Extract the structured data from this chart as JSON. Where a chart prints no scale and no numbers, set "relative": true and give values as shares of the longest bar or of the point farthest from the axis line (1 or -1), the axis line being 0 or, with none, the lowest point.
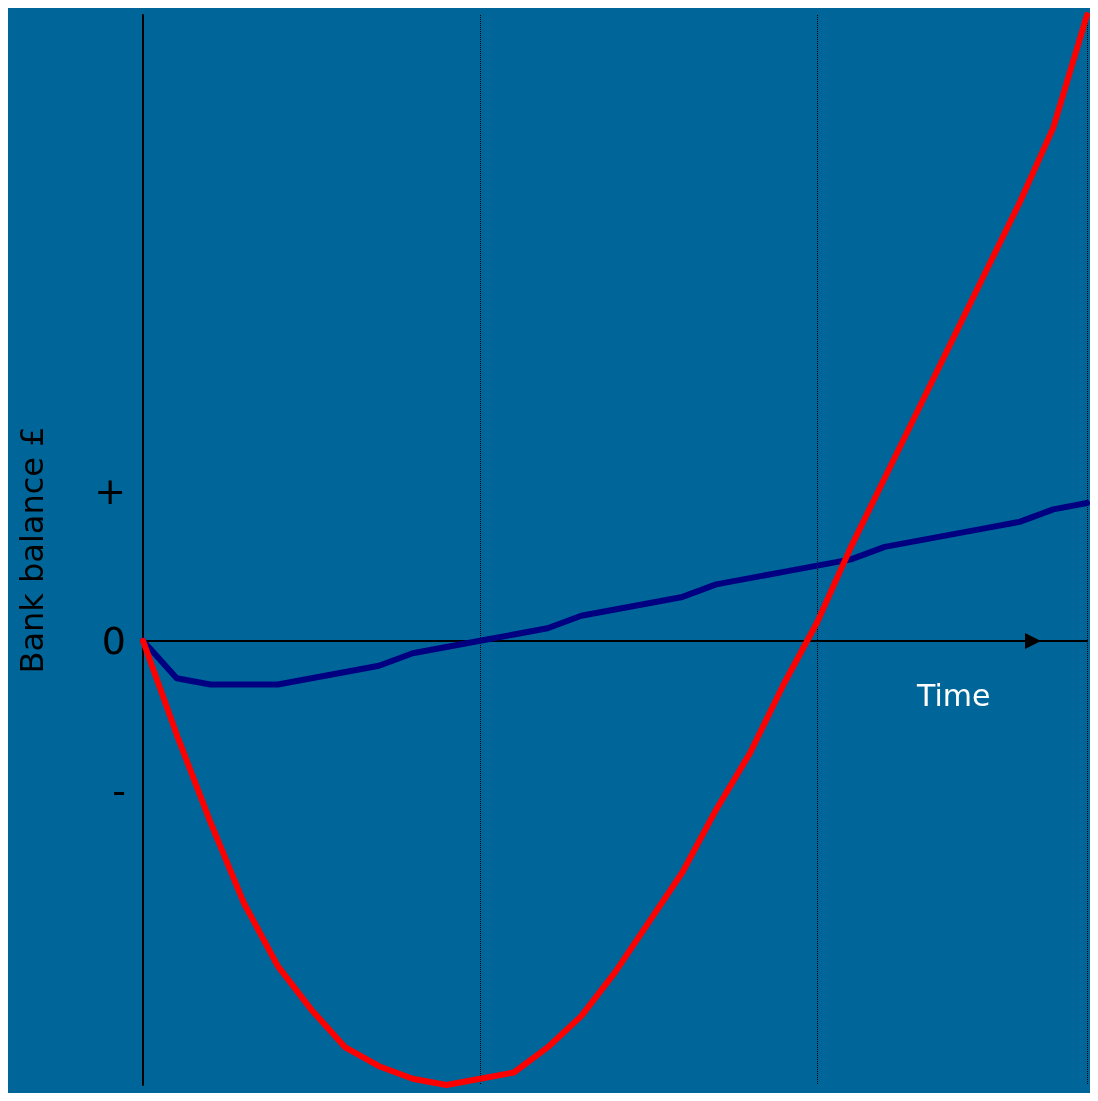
{
  "chart_data": {
    "type": "line",
    "relative": true,
    "xlabel": "Time",
    "ylabel": "Bank balance £",
    "categories": [
      null,
      null,
      null,
      null,
      null,
      null,
      null,
      null,
      null,
      null,
      null,
      null,
      null,
      null,
      null,
      null,
      null,
      null,
      null,
      null,
      null,
      null,
      null,
      null,
      null,
      null,
      null,
      null,
      null
    ],
    "series": [
      {
        "color": "#000080",
        "values": [
          0,
          -0.06,
          -0.07,
          -0.07,
          -0.07,
          -0.06,
          -0.05,
          -0.04,
          -0.02,
          -0.01,
          0,
          0.01,
          0.02,
          0.04,
          0.05,
          0.06,
          0.07,
          0.09,
          0.1,
          0.11,
          0.12,
          0.13,
          0.15,
          0.16,
          0.17,
          0.18,
          0.19,
          0.21,
          0.22
        ]
      },
      {
        "color": "#ff0000",
        "values": [
          0,
          -0.15,
          -0.29,
          -0.42,
          -0.52,
          -0.59,
          -0.65,
          -0.68,
          -0.7,
          -0.71,
          -0.7,
          -0.69,
          -0.65,
          -0.6,
          -0.53,
          -0.45,
          -0.37,
          -0.27,
          -0.18,
          -0.07,
          0.03,
          0.15,
          0.26,
          0.37,
          0.48,
          0.59,
          0.7,
          0.82,
          1
        ]
      }
    ],
    "ylim": [
      -0.71,
      1
    ],
    "annotations": [
      "+",
      "0",
      "-"
    ],
    "grid": "x",
    "marker": "none",
    "line_style": "solid"
  }
}
